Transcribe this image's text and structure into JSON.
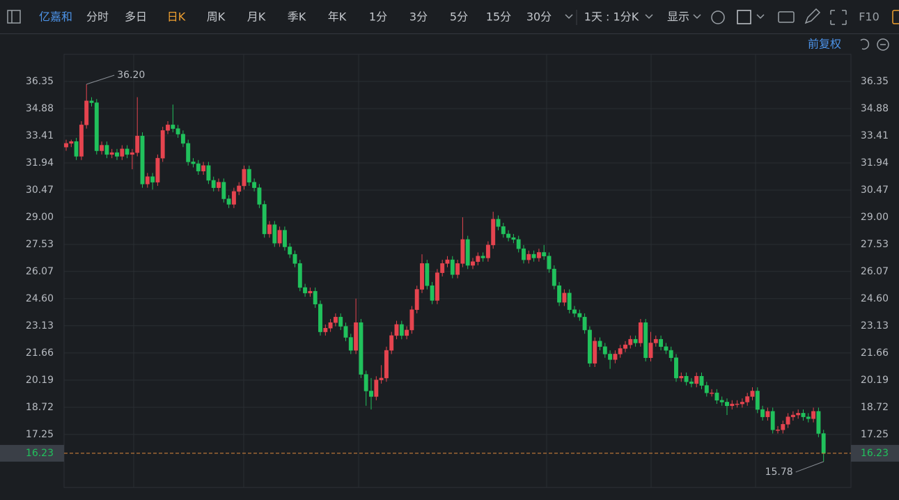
{
  "toolbar": {
    "stock": "亿嘉和",
    "tabs": [
      "分时",
      "多日",
      "日K",
      "周K",
      "月K",
      "季K",
      "年K",
      "1分",
      "3分",
      "5分",
      "15分",
      "30分"
    ],
    "active_tab": 2,
    "range": "1天 : 1分K",
    "display": "显示",
    "f10": "F10",
    "adjust": "前复权"
  },
  "chart_data": {
    "type": "candlestick",
    "open": [
      32.8,
      33.0,
      33.1,
      32.3,
      34.0,
      35.3,
      35.2,
      32.6,
      32.9,
      32.4,
      32.5,
      32.3,
      32.7,
      32.4,
      32.5,
      33.4,
      30.8,
      31.2,
      30.9,
      32.2,
      33.7,
      34.0,
      33.8,
      33.5,
      33.0,
      32.0,
      31.9,
      31.5,
      31.8,
      31.0,
      30.6,
      30.9,
      30.0,
      29.7,
      30.4,
      30.7,
      31.6,
      30.9,
      30.6,
      29.7,
      28.1,
      28.6,
      27.6,
      28.3,
      27.4,
      27.0,
      26.5,
      25.2,
      24.9,
      25.0,
      24.3,
      22.8,
      23.0,
      23.3,
      23.6,
      23.1,
      22.5,
      21.8,
      23.3,
      20.5,
      19.6,
      19.3,
      20.2,
      20.3,
      21.8,
      22.6,
      23.2,
      22.6,
      22.9,
      24.0,
      25.1,
      26.5,
      25.3,
      24.5,
      26.0,
      26.5,
      26.7,
      25.9,
      26.5,
      27.8,
      26.4,
      26.6,
      26.9,
      26.8,
      27.5,
      28.9,
      28.5,
      28.1,
      27.9,
      27.8,
      27.3,
      26.7,
      27.0,
      26.8,
      27.1,
      26.9,
      26.2,
      25.3,
      24.4,
      24.9,
      24.0,
      23.8,
      23.6,
      22.9,
      21.1,
      22.3,
      22.0,
      21.6,
      21.3,
      21.6,
      21.9,
      22.1,
      22.4,
      22.2,
      23.3,
      21.4,
      22.2,
      22.4,
      22.0,
      21.8,
      21.4,
      20.3,
      20.4,
      20.1,
      20.0,
      20.4,
      19.9,
      19.5,
      19.5,
      19.1,
      19.0,
      18.8,
      18.9,
      18.9,
      19.0,
      19.3,
      19.6,
      18.6,
      18.2,
      18.5,
      17.5,
      17.5,
      17.8,
      18.2,
      18.3,
      18.4,
      18.2,
      18.1,
      18.5,
      17.3
    ],
    "high": [
      33.2,
      33.2,
      33.3,
      34.2,
      36.2,
      35.5,
      35.4,
      33.1,
      33.1,
      32.7,
      32.7,
      32.9,
      32.9,
      32.7,
      35.5,
      33.6,
      31.4,
      31.4,
      32.4,
      33.9,
      34.2,
      35.1,
      34.0,
      33.7,
      33.2,
      32.2,
      32.1,
      32.0,
      32.0,
      31.2,
      31.1,
      31.1,
      30.2,
      30.6,
      30.9,
      31.8,
      31.8,
      31.1,
      30.8,
      29.9,
      28.8,
      28.8,
      28.5,
      28.5,
      27.6,
      27.2,
      26.7,
      25.4,
      25.2,
      25.2,
      24.5,
      23.2,
      23.5,
      23.8,
      23.8,
      23.3,
      22.7,
      24.6,
      23.5,
      20.7,
      20.3,
      20.4,
      21.0,
      22.0,
      22.8,
      23.4,
      23.4,
      23.1,
      24.2,
      25.3,
      27.0,
      26.7,
      25.5,
      26.2,
      26.7,
      26.9,
      26.9,
      26.7,
      29.0,
      28.0,
      26.8,
      27.1,
      27.1,
      27.7,
      29.3,
      29.1,
      28.7,
      28.3,
      28.1,
      28.0,
      27.5,
      27.2,
      27.2,
      27.3,
      27.5,
      27.1,
      26.4,
      25.5,
      25.1,
      25.1,
      24.2,
      24.0,
      23.8,
      23.1,
      22.5,
      22.5,
      22.2,
      21.8,
      21.8,
      22.1,
      22.3,
      22.6,
      22.6,
      23.5,
      23.5,
      22.8,
      22.6,
      22.6,
      22.2,
      22.0,
      21.6,
      20.6,
      20.6,
      20.3,
      20.6,
      20.6,
      20.1,
      19.7,
      19.7,
      19.3,
      19.2,
      19.1,
      19.1,
      19.2,
      19.5,
      19.8,
      19.8,
      18.8,
      18.7,
      18.7,
      17.7,
      18.0,
      18.4,
      18.5,
      18.6,
      18.6,
      18.4,
      18.7,
      18.7,
      17.5
    ],
    "low": [
      32.6,
      32.8,
      32.1,
      32.1,
      33.8,
      35.0,
      32.4,
      32.4,
      32.2,
      32.2,
      32.1,
      32.1,
      32.2,
      31.6,
      32.3,
      30.6,
      30.6,
      30.5,
      30.7,
      32.0,
      33.5,
      33.6,
      33.3,
      32.8,
      31.8,
      31.7,
      31.3,
      31.3,
      30.8,
      30.4,
      30.4,
      29.8,
      29.5,
      29.5,
      30.2,
      30.5,
      30.7,
      30.4,
      29.5,
      27.9,
      27.9,
      27.4,
      27.4,
      27.2,
      26.8,
      26.3,
      25.0,
      24.7,
      24.7,
      24.1,
      22.6,
      22.6,
      22.8,
      23.1,
      22.9,
      22.3,
      21.6,
      21.6,
      20.3,
      18.8,
      18.6,
      19.1,
      20.0,
      20.1,
      21.6,
      22.4,
      22.4,
      22.4,
      22.7,
      23.8,
      24.9,
      25.1,
      24.3,
      24.3,
      25.8,
      26.3,
      25.7,
      25.7,
      26.3,
      26.2,
      26.2,
      26.4,
      26.6,
      26.6,
      27.3,
      28.3,
      27.9,
      27.7,
      27.6,
      27.1,
      26.5,
      26.5,
      26.6,
      26.6,
      26.7,
      26.0,
      25.1,
      24.2,
      24.2,
      23.8,
      23.6,
      23.4,
      22.7,
      20.9,
      20.9,
      21.8,
      21.4,
      20.8,
      21.1,
      21.4,
      21.7,
      21.9,
      22.0,
      22.0,
      21.2,
      21.2,
      22.0,
      21.8,
      21.6,
      21.2,
      20.1,
      20.1,
      19.9,
      19.8,
      19.8,
      19.7,
      19.3,
      19.3,
      18.9,
      18.8,
      18.3,
      18.6,
      18.7,
      18.7,
      18.8,
      19.1,
      18.4,
      18.0,
      18.0,
      17.3,
      17.3,
      17.3,
      17.6,
      18.0,
      18.1,
      18.0,
      17.9,
      17.9,
      17.1,
      15.78
    ],
    "close": [
      33.0,
      33.1,
      32.3,
      34.0,
      35.3,
      35.2,
      32.6,
      32.9,
      32.4,
      32.5,
      32.3,
      32.7,
      32.4,
      32.5,
      33.4,
      30.8,
      31.2,
      30.9,
      32.2,
      33.7,
      34.0,
      33.8,
      33.5,
      33.0,
      32.0,
      31.9,
      31.5,
      31.8,
      31.0,
      30.6,
      30.9,
      30.0,
      29.7,
      30.4,
      30.7,
      31.6,
      30.9,
      30.6,
      29.7,
      28.1,
      28.6,
      27.6,
      28.3,
      27.4,
      27.0,
      26.5,
      25.2,
      24.9,
      25.0,
      24.3,
      22.8,
      23.0,
      23.3,
      23.6,
      23.1,
      22.5,
      21.8,
      23.3,
      20.5,
      19.6,
      19.3,
      20.2,
      20.3,
      21.8,
      22.6,
      23.2,
      22.6,
      22.9,
      24.0,
      25.1,
      26.5,
      25.3,
      24.5,
      26.0,
      26.5,
      26.7,
      25.9,
      26.5,
      27.8,
      26.4,
      26.6,
      26.9,
      26.8,
      27.5,
      28.9,
      28.5,
      28.1,
      27.9,
      27.8,
      27.3,
      26.7,
      27.0,
      26.8,
      27.1,
      26.9,
      26.2,
      25.3,
      24.4,
      24.9,
      24.0,
      23.8,
      23.6,
      22.9,
      21.1,
      22.3,
      22.0,
      21.6,
      21.3,
      21.6,
      21.9,
      22.1,
      22.4,
      22.2,
      23.3,
      21.4,
      22.2,
      22.4,
      22.0,
      21.8,
      21.4,
      20.3,
      20.4,
      20.1,
      20.0,
      20.4,
      19.9,
      19.5,
      19.5,
      19.1,
      19.0,
      18.8,
      18.9,
      18.9,
      19.0,
      19.3,
      19.6,
      18.6,
      18.2,
      18.5,
      17.5,
      17.5,
      17.8,
      18.2,
      18.3,
      18.4,
      18.2,
      18.1,
      18.5,
      17.3,
      16.23
    ],
    "up_color": "#e5444f",
    "down_color": "#21c15c",
    "ylim": [
      14.38,
      37.82
    ],
    "yticks": [
      36.35,
      34.88,
      33.41,
      31.94,
      30.47,
      {
        "value": 29,
        "label": "29.00"
      },
      27.53,
      26.07,
      {
        "value": 24.6,
        "label": "24.60"
      },
      23.13,
      21.66,
      20.19,
      18.72,
      17.25
    ],
    "grid": true,
    "max_label": "36.20",
    "min_label": "15.78"
  }
}
